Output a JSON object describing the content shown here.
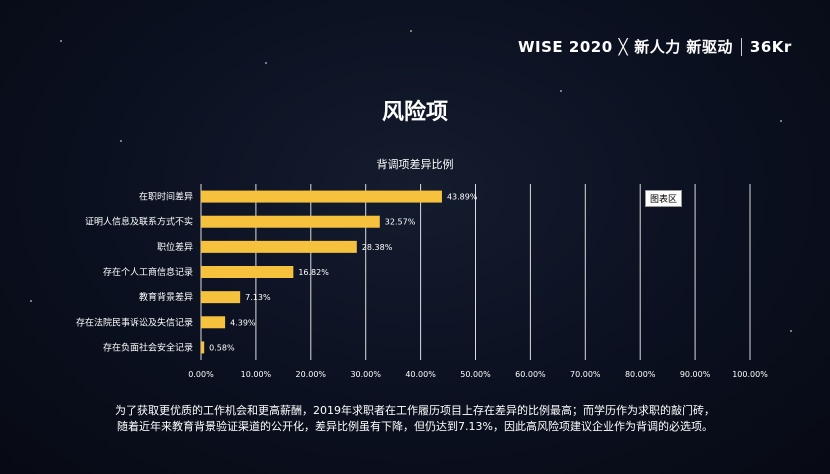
{
  "header": {
    "event": "WISE 2020",
    "cross": "╳",
    "slogan": "新人力 新驱动",
    "logo": "36Kr"
  },
  "page_title": "风险项",
  "legend_label": "图表区",
  "caption": {
    "line1": "为了获取更优质的工作机会和更高薪酬，2019年求职者在工作履历项目上存在差异的比例最高；而学历作为求职的敲门砖，",
    "line2": "随着近年来教育背景验证渠道的公开化，差异比例虽有下降，但仍达到7.13%，因此高风险项建议企业作为背调的必选项。"
  },
  "chart_data": {
    "type": "bar",
    "orientation": "horizontal",
    "title": "背调项差异比例",
    "categories": [
      "在职时间差异",
      "证明人信息及联系方式不实",
      "职位差异",
      "存在个人工商信息记录",
      "教育背景差异",
      "存在法院民事诉讼及失信记录",
      "存在负面社会安全记录"
    ],
    "values": [
      43.89,
      32.57,
      28.38,
      16.82,
      7.13,
      4.39,
      0.58
    ],
    "value_labels": [
      "43.89%",
      "32.57%",
      "28.38%",
      "16.82%",
      "7.13%",
      "4.39%",
      "0.58%"
    ],
    "xlim": [
      0,
      100
    ],
    "x_ticks": [
      "0.00%",
      "10.00%",
      "20.00%",
      "30.00%",
      "40.00%",
      "50.00%",
      "60.00%",
      "70.00%",
      "80.00%",
      "90.00%",
      "100.00%"
    ],
    "x_tick_values": [
      0,
      10,
      20,
      30,
      40,
      50,
      60,
      70,
      80,
      90,
      100
    ],
    "grid": true,
    "bar_color": "#f6c23e",
    "grid_color": "#ffffff"
  }
}
